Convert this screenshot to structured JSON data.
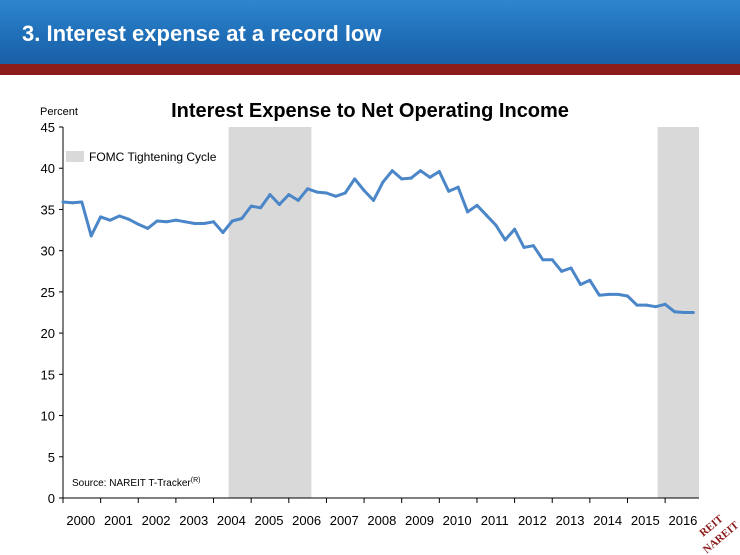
{
  "slide": {
    "title": "3.  Interest expense at a record low",
    "colors": {
      "banner": "#1f6fb8",
      "accent_band": "#8b1a1a",
      "line": "#4a86c8",
      "shade": "#d9d9d9"
    }
  },
  "chart_data": {
    "type": "line",
    "title": "Interest Expense to Net Operating Income",
    "ylabel": "Percent",
    "xlabel": "",
    "ylim": [
      0,
      45
    ],
    "yticks": [
      0,
      5,
      10,
      15,
      20,
      25,
      30,
      35,
      40,
      45
    ],
    "xlim": [
      2000,
      2016.9
    ],
    "xticks": [
      "2000",
      "2001",
      "2002",
      "2003",
      "2004",
      "2005",
      "2006",
      "2007",
      "2008",
      "2009",
      "2010",
      "2011",
      "2012",
      "2013",
      "2014",
      "2015",
      "2016"
    ],
    "grid": false,
    "shaded_periods": [
      {
        "label": "FOMC Tightening Cycle",
        "start": 2004.4,
        "end": 2006.6
      },
      {
        "label": "FOMC Tightening Cycle",
        "start": 2015.8,
        "end": 2016.9
      }
    ],
    "legend": {
      "label": "FOMC Tightening Cycle",
      "position": "top-left"
    },
    "source": "Source: NAREIT T-Tracker",
    "source_superscript": "(R)",
    "series": [
      {
        "x": [
          2000.0,
          2000.25,
          2000.5,
          2000.75,
          2001.0,
          2001.25,
          2001.5,
          2001.75,
          2002.0,
          2002.25,
          2002.5,
          2002.75,
          2003.0,
          2003.25,
          2003.5,
          2003.75,
          2004.0,
          2004.25,
          2004.5,
          2004.75,
          2005.0,
          2005.25,
          2005.5,
          2005.75,
          2006.0,
          2006.25,
          2006.5,
          2006.75,
          2007.0,
          2007.25,
          2007.5,
          2007.75,
          2008.0,
          2008.25,
          2008.5,
          2008.75,
          2009.0,
          2009.25,
          2009.5,
          2009.75,
          2010.0,
          2010.25,
          2010.5,
          2010.75,
          2011.0,
          2011.25,
          2011.5,
          2011.75,
          2012.0,
          2012.25,
          2012.5,
          2012.75,
          2013.0,
          2013.25,
          2013.5,
          2013.75,
          2014.0,
          2014.25,
          2014.5,
          2014.75,
          2015.0,
          2015.25,
          2015.5,
          2015.75,
          2016.0,
          2016.25,
          2016.5,
          2016.75
        ],
        "values": [
          35.9,
          35.8,
          35.9,
          31.8,
          34.1,
          33.7,
          34.2,
          33.8,
          33.2,
          32.7,
          33.6,
          33.5,
          33.7,
          33.5,
          33.3,
          33.3,
          33.5,
          32.2,
          33.6,
          33.9,
          35.4,
          35.2,
          36.8,
          35.6,
          36.8,
          36.1,
          37.5,
          37.1,
          37.0,
          36.6,
          37.0,
          38.7,
          37.3,
          36.1,
          38.3,
          39.7,
          38.7,
          38.8,
          39.7,
          38.9,
          39.6,
          37.2,
          37.7,
          34.7,
          35.5,
          34.3,
          33.1,
          31.3,
          32.6,
          30.4,
          30.6,
          28.9,
          28.9,
          27.5,
          27.9,
          25.9,
          26.4,
          24.6,
          24.7,
          24.7,
          24.5,
          23.4,
          23.4,
          23.2,
          23.5,
          22.6,
          22.5,
          22.5
        ]
      }
    ]
  },
  "logo": {
    "text_top": "REIT",
    "text_bottom": "NAREIT"
  }
}
